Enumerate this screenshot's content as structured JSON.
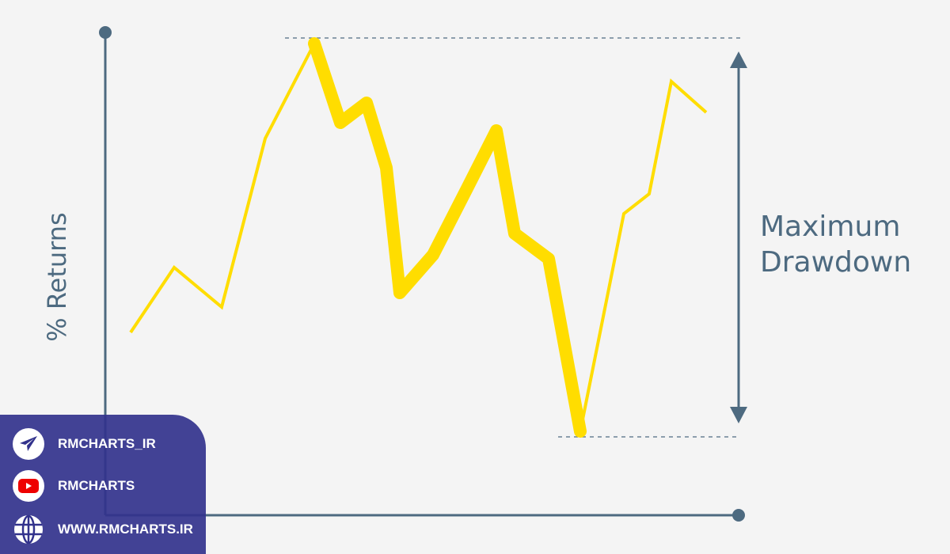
{
  "diagram": {
    "y_axis_label": "% Returns",
    "annotation": {
      "line1": "Maximum",
      "line2": "Drawdown"
    },
    "colors": {
      "axis": "#4d6a80",
      "line": "#ffdd00",
      "panel": "#32328c"
    }
  },
  "social_panel": {
    "items": [
      {
        "icon": "telegram-icon",
        "label": "RMCHARTS_IR"
      },
      {
        "icon": "youtube-icon",
        "label": "RMCHARTS"
      },
      {
        "icon": "globe-icon",
        "label": "WWW.RMCHARTS.IR"
      }
    ]
  }
}
